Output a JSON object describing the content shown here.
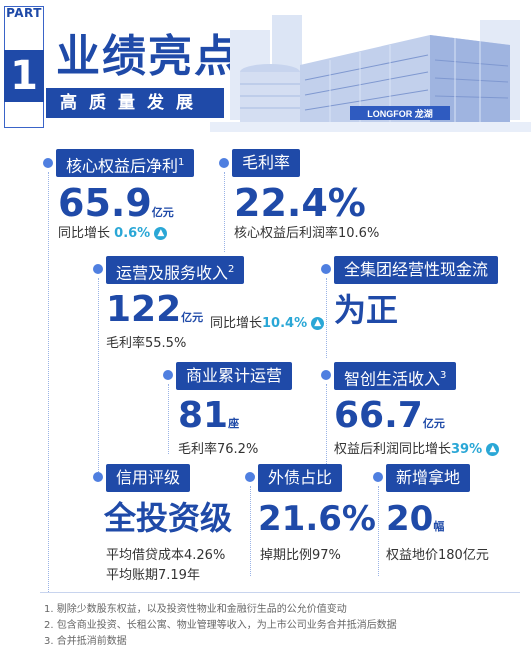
{
  "header": {
    "part": "PART",
    "part_number": "1",
    "title": "业绩亮点",
    "subtitle": "高质量发展",
    "logo": "LONGFOR 龙湖"
  },
  "metrics": [
    {
      "label": "核心权益后净利",
      "note": "1",
      "value": "65.9",
      "unit": "亿元",
      "line1_prefix": "同比增长",
      "line1_hl": "0.6%"
    },
    {
      "label": "毛利率",
      "value": "22.4%",
      "line1": "核心权益后利润率10.6%"
    },
    {
      "label": "运营及服务收入",
      "note": "2",
      "value": "122",
      "unit": "亿元",
      "inline_prefix": "同比增长",
      "inline_hl": "10.4%",
      "line1": "毛利率55.5%"
    },
    {
      "label": "全集团经营性现金流",
      "value": "为正"
    },
    {
      "label": "商业累计运营",
      "value": "81",
      "unit": "座",
      "line1": "毛利率76.2%"
    },
    {
      "label": "智创生活收入",
      "note": "3",
      "value": "66.7",
      "unit": "亿元",
      "line1_prefix": "权益后利润同比增长",
      "line1_hl": "39%"
    },
    {
      "label": "信用评级",
      "value": "全投资级",
      "line1": "平均借贷成本4.26%",
      "line2": "平均账期7.19年"
    },
    {
      "label": "外债占比",
      "value": "21.6%",
      "line1": "掉期比例97%"
    },
    {
      "label": "新增拿地",
      "value": "20",
      "unit": "幅",
      "line1": "权益地价180亿元"
    }
  ],
  "footnotes": [
    "1. 剔除少数股东权益，以及投资性物业和金融衍生品的公允价值变动",
    "2. 包含商业投资、长租公寓、物业管理等收入，为上市公司业务合并抵消后数据",
    "3. 合并抵消前数据"
  ],
  "colors": {
    "primary": "#1f4aa8",
    "accent": "#2aa7d6",
    "dot": "#4f7fe0"
  }
}
